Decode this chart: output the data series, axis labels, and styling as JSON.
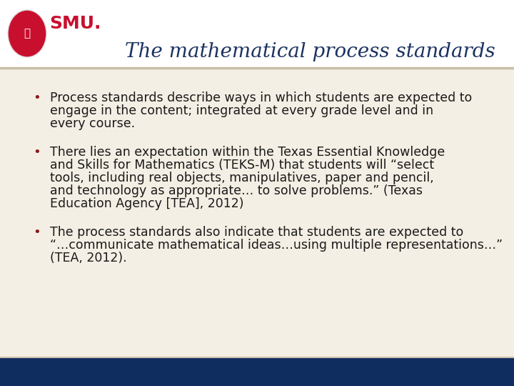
{
  "title": "The mathematical process standards",
  "title_color": "#1c3361",
  "title_fontsize": 20,
  "bg_color": "#f4efe4",
  "content_bg": "#f4efe4",
  "header_bg": "#ffffff",
  "footer_color": "#0f2d5e",
  "separator_color": "#c9bfa8",
  "bullet_color": "#8b1a1a",
  "text_color": "#1a1a1a",
  "bullet1": "Process standards describe ways in which students are expected to engage in the content; integrated at every grade level and in every course.",
  "bullet2": "There lies an expectation within the Texas Essential Knowledge and Skills for Mathematics (TEKS-M) that students will “select tools, including real objects, manipulatives, paper and pencil, and technology as appropriate… to solve problems.” (Texas Education Agency [TEA], 2012)",
  "bullet3": "The process standards also indicate that students are expected to “…communicate mathematical ideas…using multiple representations…” (TEA, 2012).",
  "bullet_fontsize": 12.5,
  "smu_text": "SMU.",
  "smu_color": "#c8102e",
  "smu_fontsize": 18,
  "logo_color": "#c8102e"
}
